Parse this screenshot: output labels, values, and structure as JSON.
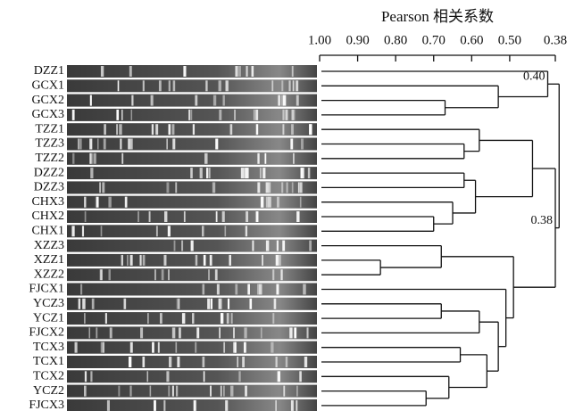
{
  "chart_data": {
    "type": "dendrogram",
    "title": "Pearson 相关系数",
    "xlim": [
      1,
      0.38
    ],
    "xticks": [
      {
        "value": 1,
        "label": "1.00"
      },
      {
        "value": 0.9,
        "label": "0.90"
      },
      {
        "value": 0.8,
        "label": "0.80"
      },
      {
        "value": 0.7,
        "label": "0.70"
      },
      {
        "value": 0.6,
        "label": "0.60"
      },
      {
        "value": 0.5,
        "label": "0.50"
      },
      0.38
    ],
    "tree": {
      "value": 0.37,
      "children": [
        {
          "value": 0.4,
          "label": "0.40",
          "children": [
            {
              "name": "DZZ1"
            },
            {
              "value": 0.53,
              "children": [
                {
                  "name": "GCX1"
                },
                {
                  "value": 0.67,
                  "children": [
                    {
                      "name": "GCX2"
                    },
                    {
                      "name": "GCX3"
                    }
                  ]
                }
              ]
            }
          ]
        },
        {
          "value": 0.38,
          "label": "0.38",
          "children": [
            {
              "value": 0.44,
              "children": [
                {
                  "value": 0.58,
                  "children": [
                    {
                      "name": "TZZ1"
                    },
                    {
                      "value": 0.62,
                      "children": [
                        {
                          "name": "TZZ3"
                        },
                        {
                          "name": "TZZ2"
                        }
                      ]
                    }
                  ]
                },
                {
                  "value": 0.59,
                  "children": [
                    {
                      "value": 0.62,
                      "children": [
                        {
                          "name": "DZZ2"
                        },
                        {
                          "name": "DZZ3"
                        }
                      ]
                    },
                    {
                      "value": 0.65,
                      "children": [
                        {
                          "name": "CHX3"
                        },
                        {
                          "value": 0.7,
                          "children": [
                            {
                              "name": "CHX2"
                            },
                            {
                              "name": "CHX1"
                            }
                          ]
                        }
                      ]
                    }
                  ]
                }
              ]
            },
            {
              "value": 0.49,
              "children": [
                {
                  "value": 0.68,
                  "children": [
                    {
                      "name": "XZZ3"
                    },
                    {
                      "value": 0.84,
                      "children": [
                        {
                          "name": "XZZ1"
                        },
                        {
                          "name": "XZZ2"
                        }
                      ]
                    }
                  ]
                },
                {
                  "value": 0.51,
                  "children": [
                    {
                      "name": "FJCX1"
                    },
                    {
                      "value": 0.53,
                      "children": [
                        {
                          "value": 0.58,
                          "children": [
                            {
                              "value": 0.68,
                              "children": [
                                {
                                  "name": "YCZ3"
                                },
                                {
                                  "name": "YCZ1"
                                }
                              ]
                            },
                            {
                              "name": "FJCX2"
                            }
                          ]
                        },
                        {
                          "value": 0.56,
                          "children": [
                            {
                              "value": 0.63,
                              "children": [
                                {
                                  "name": "TCX3"
                                },
                                {
                                  "name": "TCX1"
                                }
                              ]
                            },
                            {
                              "value": 0.66,
                              "children": [
                                {
                                  "name": "TCX2"
                                },
                                {
                                  "value": 0.72,
                                  "children": [
                                    {
                                      "name": "YCZ2"
                                    },
                                    {
                                      "name": "FJCX3"
                                    }
                                  ]
                                }
                              ]
                            }
                          ]
                        }
                      ]
                    }
                  ]
                }
              ]
            }
          ]
        }
      ]
    }
  }
}
